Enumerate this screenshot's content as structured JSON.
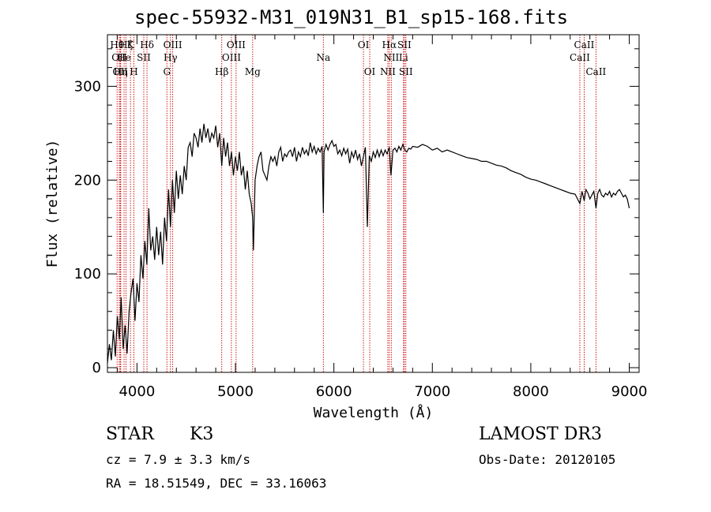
{
  "chart_data": {
    "type": "line",
    "title": "spec-55932-M31_019N31_B1_sp15-168.fits",
    "xlabel": "Wavelength (Å)",
    "ylabel": "Flux (relative)",
    "xlim": [
      3700,
      9100
    ],
    "ylim": [
      -5,
      355
    ],
    "xticks": [
      4000,
      5000,
      6000,
      7000,
      8000,
      9000
    ],
    "yticks": [
      0,
      100,
      200,
      300
    ],
    "xtick_labels": [
      "4000",
      "5000",
      "6000",
      "7000",
      "8000",
      "9000"
    ],
    "ytick_labels": [
      "0",
      "100",
      "200",
      "300"
    ],
    "grid": false,
    "series": [
      {
        "name": "spectrum",
        "color": "#000000",
        "x": [
          3700,
          3720,
          3740,
          3760,
          3780,
          3800,
          3820,
          3840,
          3860,
          3880,
          3900,
          3920,
          3940,
          3960,
          3980,
          4000,
          4020,
          4040,
          4060,
          4080,
          4100,
          4120,
          4140,
          4160,
          4180,
          4200,
          4220,
          4240,
          4260,
          4280,
          4300,
          4320,
          4340,
          4360,
          4380,
          4400,
          4420,
          4440,
          4460,
          4480,
          4500,
          4520,
          4540,
          4560,
          4580,
          4600,
          4620,
          4640,
          4660,
          4680,
          4700,
          4720,
          4740,
          4760,
          4780,
          4800,
          4820,
          4840,
          4861,
          4880,
          4900,
          4920,
          4940,
          4960,
          4980,
          5000,
          5020,
          5040,
          5060,
          5080,
          5100,
          5120,
          5140,
          5160,
          5175,
          5183,
          5200,
          5220,
          5240,
          5260,
          5280,
          5300,
          5320,
          5340,
          5360,
          5380,
          5400,
          5420,
          5440,
          5460,
          5480,
          5500,
          5520,
          5540,
          5560,
          5580,
          5600,
          5620,
          5640,
          5660,
          5680,
          5700,
          5720,
          5740,
          5760,
          5780,
          5800,
          5820,
          5840,
          5860,
          5880,
          5893,
          5900,
          5920,
          5940,
          5960,
          5980,
          6000,
          6020,
          6040,
          6060,
          6080,
          6100,
          6120,
          6140,
          6160,
          6180,
          6200,
          6220,
          6240,
          6260,
          6280,
          6300,
          6320,
          6340,
          6360,
          6380,
          6400,
          6420,
          6440,
          6460,
          6480,
          6500,
          6520,
          6540,
          6563,
          6580,
          6600,
          6620,
          6640,
          6660,
          6680,
          6700,
          6720,
          6740,
          6760,
          6780,
          6800,
          6850,
          6900,
          6950,
          7000,
          7050,
          7100,
          7150,
          7200,
          7250,
          7300,
          7350,
          7400,
          7450,
          7500,
          7550,
          7600,
          7650,
          7700,
          7750,
          7800,
          7850,
          7900,
          7950,
          8000,
          8050,
          8100,
          8150,
          8200,
          8250,
          8300,
          8350,
          8400,
          8450,
          8498,
          8520,
          8542,
          8560,
          8580,
          8600,
          8620,
          8640,
          8662,
          8680,
          8700,
          8720,
          8740,
          8760,
          8780,
          8800,
          8820,
          8840,
          8860,
          8880,
          8900,
          8920,
          8940,
          8960,
          8980,
          8990,
          9000
        ],
        "y": [
          5,
          25,
          8,
          40,
          12,
          55,
          30,
          75,
          20,
          45,
          15,
          60,
          80,
          95,
          50,
          90,
          70,
          120,
          95,
          135,
          110,
          170,
          125,
          140,
          115,
          150,
          120,
          145,
          110,
          160,
          135,
          190,
          150,
          200,
          165,
          210,
          180,
          205,
          185,
          215,
          200,
          235,
          240,
          225,
          250,
          245,
          235,
          255,
          240,
          260,
          245,
          255,
          240,
          250,
          245,
          258,
          235,
          250,
          215,
          245,
          225,
          240,
          215,
          230,
          205,
          225,
          210,
          230,
          205,
          215,
          190,
          210,
          185,
          175,
          160,
          125,
          200,
          215,
          225,
          230,
          210,
          205,
          200,
          215,
          225,
          220,
          225,
          215,
          230,
          235,
          220,
          228,
          225,
          230,
          232,
          225,
          235,
          220,
          230,
          225,
          235,
          228,
          232,
          226,
          240,
          230,
          236,
          228,
          234,
          230,
          236,
          165,
          230,
          238,
          232,
          238,
          242,
          236,
          238,
          228,
          232,
          226,
          234,
          228,
          233,
          218,
          230,
          224,
          232,
          222,
          228,
          215,
          225,
          235,
          150,
          226,
          220,
          230,
          224,
          232,
          225,
          232,
          226,
          232,
          228,
          235,
          205,
          232,
          234,
          230,
          236,
          232,
          238,
          232,
          230,
          234,
          233,
          236,
          235,
          238,
          236,
          232,
          234,
          230,
          232,
          230,
          228,
          226,
          224,
          223,
          222,
          220,
          220,
          218,
          216,
          215,
          213,
          210,
          208,
          206,
          203,
          201,
          200,
          198,
          196,
          194,
          192,
          190,
          188,
          186,
          185,
          175,
          188,
          178,
          190,
          186,
          180,
          184,
          188,
          170,
          186,
          190,
          184,
          182,
          186,
          184,
          188,
          182,
          186,
          184,
          188,
          190,
          186,
          182,
          184,
          180,
          175,
          170
        ]
      }
    ],
    "line_markers": [
      {
        "wave": 3798,
        "label": "Hθ",
        "row": 1
      },
      {
        "wave": 3820,
        "label": "OII",
        "row": 2
      },
      {
        "wave": 3830,
        "label": "OII",
        "row": 3
      },
      {
        "wave": 3835,
        "label": "Hη",
        "row": 3
      },
      {
        "wave": 3869,
        "label": "He",
        "row": 2
      },
      {
        "wave": 3889,
        "label": "Hζ",
        "row": 1
      },
      {
        "wave": 3934,
        "label": "K",
        "row": 1
      },
      {
        "wave": 3969,
        "label": "H",
        "row": 3
      },
      {
        "wave": 4069,
        "label": "SII",
        "row": 2
      },
      {
        "wave": 4102,
        "label": "Hδ",
        "row": 1
      },
      {
        "wave": 4304,
        "label": "G",
        "row": 3
      },
      {
        "wave": 4340,
        "label": "Hγ",
        "row": 2
      },
      {
        "wave": 4363,
        "label": "OIII",
        "row": 1
      },
      {
        "wave": 4861,
        "label": "Hβ",
        "row": 3
      },
      {
        "wave": 4959,
        "label": "OIII",
        "row": 2
      },
      {
        "wave": 5007,
        "label": "OIII",
        "row": 1
      },
      {
        "wave": 5175,
        "label": "Mg",
        "row": 3
      },
      {
        "wave": 5893,
        "label": "Na",
        "row": 2
      },
      {
        "wave": 6300,
        "label": "OI",
        "row": 1
      },
      {
        "wave": 6364,
        "label": "OI",
        "row": 3
      },
      {
        "wave": 6548,
        "label": "NII",
        "row": 3
      },
      {
        "wave": 6563,
        "label": "Hα",
        "row": 1
      },
      {
        "wave": 6583,
        "label": "NII",
        "row": 2
      },
      {
        "wave": 6707,
        "label": "Li",
        "row": 2
      },
      {
        "wave": 6716,
        "label": "SII",
        "row": 1
      },
      {
        "wave": 6731,
        "label": "SII",
        "row": 3
      },
      {
        "wave": 8498,
        "label": "CaII",
        "row": 2
      },
      {
        "wave": 8542,
        "label": "CaII",
        "row": 1
      },
      {
        "wave": 8662,
        "label": "CaII",
        "row": 3
      }
    ],
    "marker_color": "#cc0000"
  },
  "info": {
    "class": "STAR",
    "subclass": "K3",
    "survey": "LAMOST DR3",
    "cz": "cz = 7.9 ± 3.3 km/s",
    "obs_date": "Obs-Date: 20120105",
    "coords": "RA =  18.51549, DEC =  33.16063"
  }
}
